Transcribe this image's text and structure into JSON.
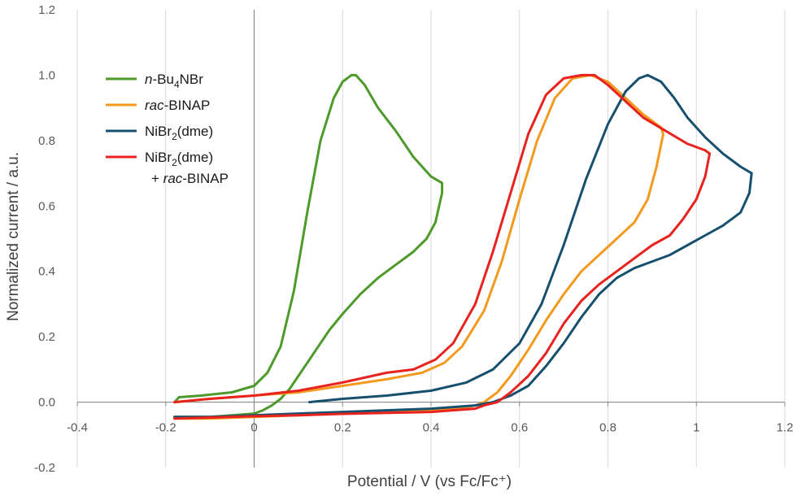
{
  "chart_data": {
    "type": "line",
    "title": "",
    "xlabel": "Potential / V (vs Fc/Fc⁺)",
    "ylabel": "Normalized current / a.u.",
    "xlim": [
      -0.4,
      1.2
    ],
    "ylim": [
      -0.2,
      1.2
    ],
    "x_ticks": [
      "-0.4",
      "-0.2",
      "0",
      "0.2",
      "0.4",
      "0.6",
      "0.8",
      "1",
      "1.2"
    ],
    "y_ticks": [
      "-0.2",
      "0.0",
      "0.2",
      "0.4",
      "0.6",
      "0.8",
      "1.0",
      "1.2"
    ],
    "grid": "vertical",
    "legend_position": "top-left",
    "legend": [
      {
        "prefix": "n",
        "prefix_italic": true,
        "base": "-Bu",
        "sub": "4",
        "suffix": "NBr",
        "suffix_italic": false,
        "line2": ""
      },
      {
        "prefix": "rac",
        "prefix_italic": true,
        "base": "-BINAP",
        "sub": "",
        "suffix": "",
        "suffix_italic": false,
        "line2": ""
      },
      {
        "prefix": "",
        "prefix_italic": false,
        "base": "NiBr",
        "sub": "2",
        "suffix": "(dme)",
        "suffix_italic": false,
        "line2": ""
      },
      {
        "prefix": "",
        "prefix_italic": false,
        "base": "NiBr",
        "sub": "2",
        "suffix": "(dme)",
        "suffix_italic": false,
        "line2": "+ ",
        "line2_italic": "rac",
        "line2_tail": "-BINAP"
      }
    ],
    "series": [
      {
        "name": "n-Bu4NBr",
        "color": "#4e9a2a",
        "x": [
          -0.18,
          -0.17,
          -0.12,
          -0.05,
          0.0,
          0.03,
          0.06,
          0.09,
          0.12,
          0.15,
          0.18,
          0.2,
          0.22,
          0.23,
          0.25,
          0.28,
          0.32,
          0.36,
          0.4,
          0.425,
          0.425,
          0.41,
          0.39,
          0.36,
          0.32,
          0.28,
          0.24,
          0.2,
          0.17,
          0.14,
          0.12,
          0.1,
          0.08,
          0.06,
          0.04,
          0.02,
          0.0,
          -0.05,
          -0.1,
          -0.15,
          -0.18
        ],
        "y": [
          0.0,
          0.015,
          0.02,
          0.03,
          0.05,
          0.09,
          0.17,
          0.34,
          0.58,
          0.8,
          0.93,
          0.98,
          1.0,
          1.0,
          0.97,
          0.9,
          0.83,
          0.75,
          0.69,
          0.67,
          0.64,
          0.55,
          0.5,
          0.46,
          0.42,
          0.38,
          0.33,
          0.27,
          0.22,
          0.16,
          0.12,
          0.08,
          0.04,
          0.01,
          -0.01,
          -0.025,
          -0.035,
          -0.04,
          -0.045,
          -0.045,
          -0.045
        ]
      },
      {
        "name": "rac-BINAP",
        "color": "#f39a1e",
        "x": [
          -0.18,
          -0.1,
          0.0,
          0.1,
          0.2,
          0.3,
          0.38,
          0.43,
          0.47,
          0.52,
          0.56,
          0.6,
          0.64,
          0.68,
          0.72,
          0.76,
          0.8,
          0.84,
          0.88,
          0.92,
          0.925,
          0.91,
          0.89,
          0.86,
          0.82,
          0.78,
          0.74,
          0.7,
          0.66,
          0.62,
          0.58,
          0.55,
          0.52,
          0.5,
          0.47,
          0.4,
          0.3,
          0.2,
          0.1,
          0.0,
          -0.1,
          -0.18
        ],
        "y": [
          0.0,
          0.01,
          0.02,
          0.03,
          0.05,
          0.07,
          0.09,
          0.12,
          0.17,
          0.28,
          0.43,
          0.62,
          0.8,
          0.93,
          0.99,
          1.0,
          0.98,
          0.93,
          0.88,
          0.84,
          0.82,
          0.72,
          0.62,
          0.55,
          0.5,
          0.45,
          0.4,
          0.33,
          0.25,
          0.16,
          0.08,
          0.03,
          0.0,
          -0.01,
          -0.02,
          -0.025,
          -0.03,
          -0.035,
          -0.04,
          -0.045,
          -0.05,
          -0.05
        ]
      },
      {
        "name": "NiBr2(dme)",
        "color": "#17506e",
        "x": [
          0.125,
          0.2,
          0.3,
          0.4,
          0.48,
          0.54,
          0.6,
          0.65,
          0.7,
          0.75,
          0.8,
          0.84,
          0.87,
          0.89,
          0.92,
          0.95,
          0.98,
          1.02,
          1.06,
          1.1,
          1.125,
          1.12,
          1.1,
          1.06,
          1.02,
          0.98,
          0.94,
          0.9,
          0.86,
          0.82,
          0.78,
          0.74,
          0.7,
          0.66,
          0.62,
          0.58,
          0.54,
          0.5,
          0.4,
          0.3,
          0.2,
          0.1,
          0.0,
          -0.1,
          -0.18
        ],
        "y": [
          0.0,
          0.01,
          0.02,
          0.035,
          0.06,
          0.1,
          0.18,
          0.3,
          0.48,
          0.68,
          0.85,
          0.95,
          0.99,
          1.0,
          0.98,
          0.93,
          0.87,
          0.81,
          0.76,
          0.72,
          0.7,
          0.64,
          0.58,
          0.54,
          0.51,
          0.48,
          0.45,
          0.43,
          0.41,
          0.38,
          0.33,
          0.26,
          0.18,
          0.11,
          0.05,
          0.02,
          0.0,
          -0.01,
          -0.02,
          -0.025,
          -0.03,
          -0.035,
          -0.04,
          -0.045,
          -0.045
        ]
      },
      {
        "name": "NiBr2(dme) + rac-BINAP",
        "color": "#e8231f",
        "x": [
          -0.18,
          -0.1,
          0.0,
          0.1,
          0.2,
          0.3,
          0.36,
          0.41,
          0.45,
          0.5,
          0.54,
          0.58,
          0.62,
          0.66,
          0.7,
          0.74,
          0.77,
          0.8,
          0.84,
          0.88,
          0.93,
          0.98,
          1.02,
          1.03,
          1.02,
          1.0,
          0.97,
          0.94,
          0.9,
          0.86,
          0.82,
          0.78,
          0.74,
          0.7,
          0.66,
          0.62,
          0.58,
          0.55,
          0.52,
          0.5,
          0.45,
          0.4,
          0.3,
          0.2,
          0.1,
          0.0,
          -0.1,
          -0.18
        ],
        "y": [
          0.0,
          0.01,
          0.02,
          0.035,
          0.06,
          0.09,
          0.1,
          0.13,
          0.18,
          0.3,
          0.46,
          0.64,
          0.82,
          0.94,
          0.99,
          1.0,
          1.0,
          0.97,
          0.92,
          0.87,
          0.83,
          0.79,
          0.77,
          0.76,
          0.69,
          0.62,
          0.56,
          0.51,
          0.48,
          0.44,
          0.4,
          0.36,
          0.31,
          0.24,
          0.15,
          0.08,
          0.03,
          0.0,
          -0.01,
          -0.02,
          -0.025,
          -0.03,
          -0.033,
          -0.036,
          -0.04,
          -0.043,
          -0.047,
          -0.05
        ]
      }
    ]
  }
}
